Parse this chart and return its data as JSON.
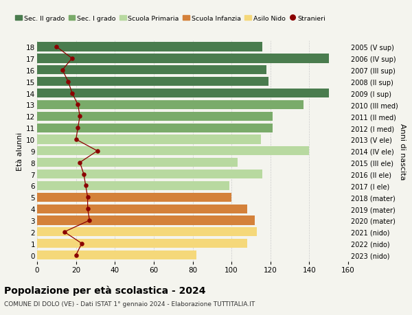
{
  "ages": [
    18,
    17,
    16,
    15,
    14,
    13,
    12,
    11,
    10,
    9,
    8,
    7,
    6,
    5,
    4,
    3,
    2,
    1,
    0
  ],
  "right_labels": [
    "2005 (V sup)",
    "2006 (IV sup)",
    "2007 (III sup)",
    "2008 (II sup)",
    "2009 (I sup)",
    "2010 (III med)",
    "2011 (II med)",
    "2012 (I med)",
    "2013 (V ele)",
    "2014 (IV ele)",
    "2015 (III ele)",
    "2016 (II ele)",
    "2017 (I ele)",
    "2018 (mater)",
    "2019 (mater)",
    "2020 (mater)",
    "2021 (nido)",
    "2022 (nido)",
    "2023 (nido)"
  ],
  "bar_values": [
    116,
    150,
    118,
    119,
    150,
    137,
    121,
    121,
    115,
    140,
    103,
    116,
    99,
    100,
    108,
    112,
    113,
    108,
    82
  ],
  "bar_colors": [
    "#4a7c4e",
    "#4a7c4e",
    "#4a7c4e",
    "#4a7c4e",
    "#4a7c4e",
    "#7aab6a",
    "#7aab6a",
    "#7aab6a",
    "#b8d9a0",
    "#b8d9a0",
    "#b8d9a0",
    "#b8d9a0",
    "#b8d9a0",
    "#d4813a",
    "#d4813a",
    "#d4813a",
    "#f5d87a",
    "#f5d87a",
    "#f5d87a"
  ],
  "stranieri_values": [
    10,
    18,
    13,
    16,
    18,
    21,
    22,
    21,
    20,
    31,
    22,
    24,
    25,
    26,
    26,
    27,
    14,
    23,
    20
  ],
  "legend_labels": [
    "Sec. II grado",
    "Sec. I grado",
    "Scuola Primaria",
    "Scuola Infanzia",
    "Asilo Nido",
    "Stranieri"
  ],
  "legend_colors": [
    "#4a7c4e",
    "#7aab6a",
    "#b8d9a0",
    "#d4813a",
    "#f5d87a",
    "#8b0000"
  ],
  "title": "Popolazione per età scolastica - 2024",
  "subtitle": "COMUNE DI DOLO (VE) - Dati ISTAT 1° gennaio 2024 - Elaborazione TUTTITALIA.IT",
  "ylabel_left": "Età alunni",
  "ylabel_right": "Anni di nascita",
  "xlim": [
    0,
    160
  ],
  "xticks": [
    0,
    20,
    40,
    60,
    80,
    100,
    120,
    140,
    160
  ],
  "bg_color": "#f4f4ee",
  "bar_height": 0.78
}
